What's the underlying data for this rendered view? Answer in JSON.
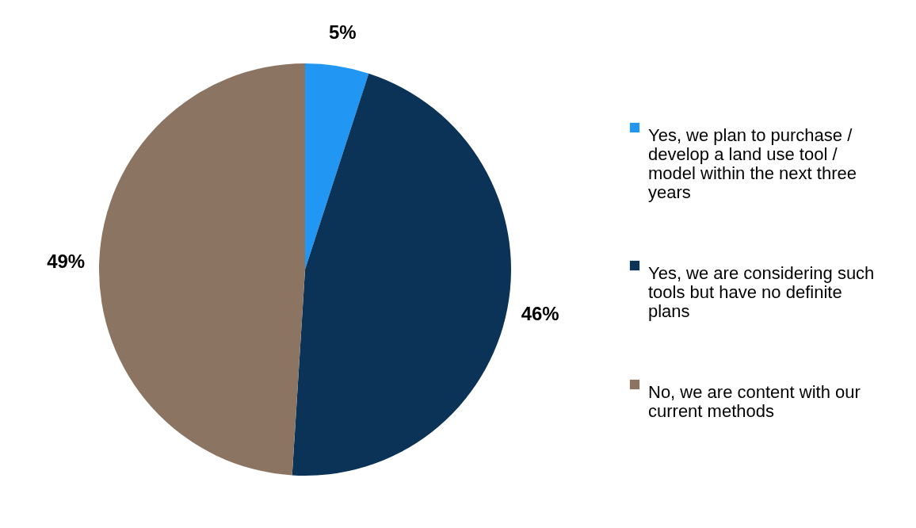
{
  "chart_data": {
    "type": "pie",
    "categories": [
      "Yes, we plan to purchase / develop a land use tool / model within the next three years",
      "Yes, we are considering such tools but have no definite plans",
      "No, we are content with our current methods"
    ],
    "values": [
      5,
      46,
      49
    ],
    "colors": [
      "#2196f3",
      "#0b3357",
      "#8c7462"
    ],
    "value_labels": [
      "5%",
      "46%",
      "49%"
    ],
    "legend": "right"
  }
}
